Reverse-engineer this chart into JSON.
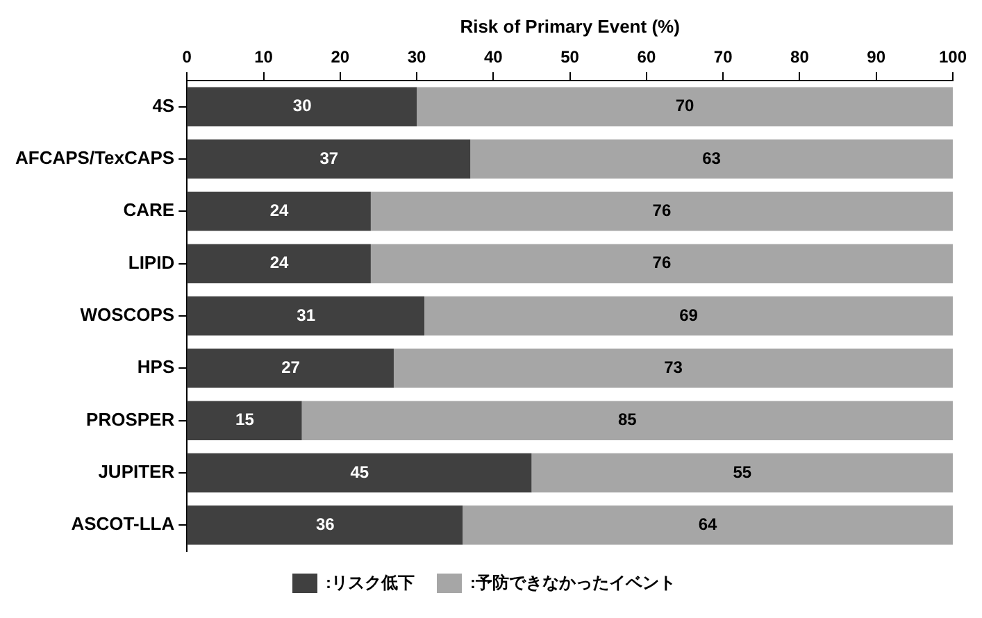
{
  "chart_data": {
    "type": "bar",
    "orientation": "horizontal",
    "stacked": true,
    "xlabel": "Risk of Primary Event (%)",
    "categories": [
      "4S",
      "AFCAPS/TexCAPS",
      "CARE",
      "LIPID",
      "WOSCOPS",
      "HPS",
      "PROSPER",
      "JUPITER",
      "ASCOT-LLA"
    ],
    "series": [
      {
        "name": ":リスク低下",
        "color": "#404040",
        "values": [
          30,
          37,
          24,
          24,
          31,
          27,
          15,
          45,
          36
        ]
      },
      {
        "name": ":予防できなかったイベント",
        "color": "#a6a6a6",
        "values": [
          70,
          63,
          76,
          76,
          69,
          73,
          85,
          55,
          64
        ]
      }
    ],
    "xlim": [
      0,
      100
    ],
    "xticks": [
      0,
      10,
      20,
      30,
      40,
      50,
      60,
      70,
      80,
      90,
      100
    ],
    "grid": false,
    "legend": "bottom",
    "data_labels": true
  }
}
